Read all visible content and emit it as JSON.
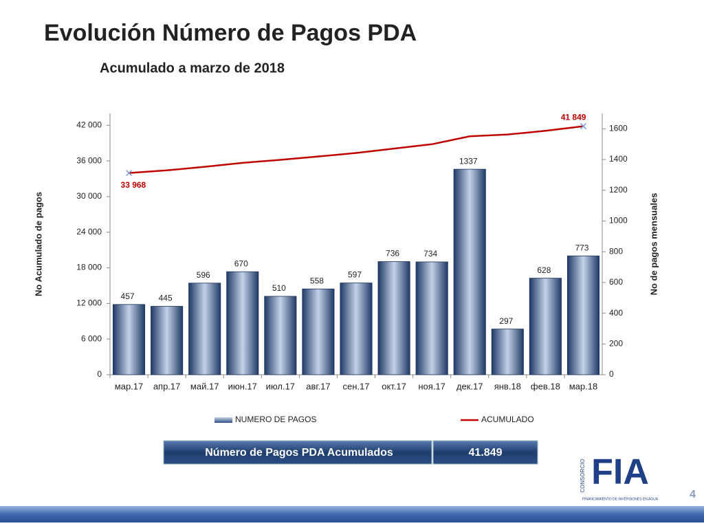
{
  "chart_data": {
    "type": "bar",
    "title": "Evolución Número de Pagos PDA",
    "subtitle": "Acumulado a marzo de 2018",
    "y_label": "No Acumulado de pagos",
    "y2_label": "No de pagos mensuales",
    "categories": [
      "мар.17",
      "апр.17",
      "май.17",
      "июн.17",
      "июл.17",
      "авг.17",
      "сен.17",
      "окт.17",
      "ноя.17",
      "дек.17",
      "янв.18",
      "фев.18",
      "мар.18"
    ],
    "series": [
      {
        "name": "NUMERO DE PAGOS",
        "type": "bar",
        "axis": "y2",
        "color": "#2e4f80",
        "values": [
          457,
          445,
          596,
          670,
          510,
          558,
          597,
          736,
          734,
          1337,
          297,
          628,
          773
        ]
      },
      {
        "name": "ACUMULADO",
        "type": "line",
        "axis": "y",
        "color": "#c00000",
        "values": [
          33968,
          34413,
          35009,
          35679,
          36189,
          36747,
          37344,
          38080,
          38814,
          40151,
          40448,
          41076,
          41849
        ],
        "value_labels": [
          "33 968",
          null,
          null,
          null,
          null,
          null,
          null,
          null,
          null,
          null,
          null,
          null,
          "41 849"
        ]
      }
    ],
    "ylim": [
      0,
      44000
    ],
    "yticks": [
      0,
      {
        "value": 6000,
        "label": "6 000"
      },
      {
        "value": 12000,
        "label": "12 000"
      },
      {
        "value": 18000,
        "label": "18 000"
      },
      {
        "value": 24000,
        "label": "24 000"
      },
      {
        "value": 30000,
        "label": "30 000"
      },
      {
        "value": 36000,
        "label": "36 000"
      },
      {
        "value": 42000,
        "label": "42 000"
      }
    ],
    "y2lim": [
      0,
      1700
    ],
    "y2ticks": [
      0,
      200,
      400,
      600,
      800,
      1000,
      1200,
      1400,
      1600
    ],
    "legend": "bottom"
  },
  "summary": {
    "label": "Número de Pagos PDA Acumulados",
    "value": "41.849"
  },
  "logo": {
    "top": "CONSORCIO",
    "name": "FIA",
    "tagline": "FINANCIAMIENTO DE INVERSIONES EN AGUA"
  },
  "page_number": "4"
}
